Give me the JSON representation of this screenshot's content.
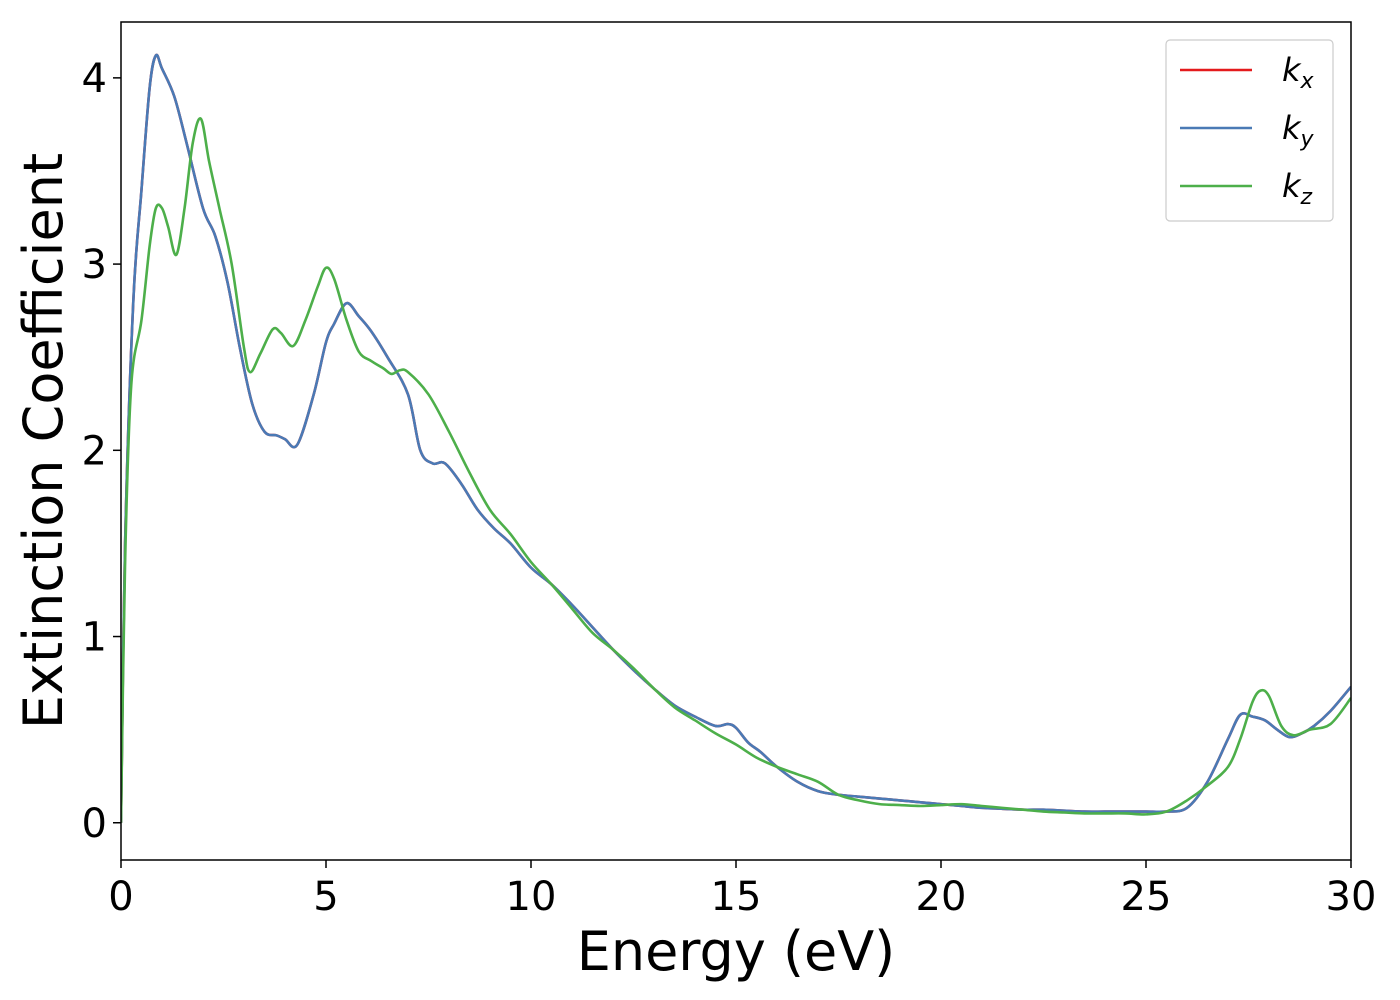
{
  "chart_data": {
    "type": "line",
    "xlabel": "Energy (eV)",
    "ylabel": "Extinction Coefficient",
    "xlim": [
      0,
      30
    ],
    "ylim": [
      -0.2,
      4.3
    ],
    "xticks": [
      0,
      5,
      10,
      15,
      20,
      25,
      30
    ],
    "yticks": [
      0,
      1,
      2,
      3,
      4
    ],
    "grid": false,
    "legend_position": "top-right",
    "series": [
      {
        "name": "k_x",
        "label_main": "k",
        "label_sub": "x",
        "color": "#e41a1c",
        "x": [
          0,
          0.1,
          0.3,
          0.5,
          0.7,
          0.85,
          1.0,
          1.3,
          1.6,
          2.0,
          2.3,
          2.6,
          2.9,
          3.2,
          3.5,
          3.8,
          4.0,
          4.3,
          4.7,
          5.0,
          5.2,
          5.5,
          5.8,
          6.1,
          6.5,
          7.0,
          7.3,
          7.6,
          7.9,
          8.3,
          8.7,
          9.1,
          9.5,
          10.0,
          10.5,
          11.0,
          11.5,
          12.0,
          12.5,
          13.0,
          13.5,
          14.0,
          14.5,
          14.8,
          15.0,
          15.3,
          15.6,
          16.0,
          16.5,
          17.0,
          17.5,
          18.0,
          18.5,
          19.0,
          19.5,
          20.0,
          20.5,
          21.0,
          21.5,
          22.0,
          22.5,
          23.0,
          23.5,
          24.0,
          24.5,
          25.0,
          25.5,
          26.0,
          26.5,
          27.0,
          27.3,
          27.6,
          27.9,
          28.2,
          28.5,
          28.8,
          29.1,
          29.5,
          30.0
        ],
        "y": [
          0.0,
          1.5,
          2.8,
          3.4,
          3.95,
          4.12,
          4.05,
          3.9,
          3.65,
          3.3,
          3.15,
          2.9,
          2.55,
          2.25,
          2.1,
          2.08,
          2.06,
          2.03,
          2.3,
          2.58,
          2.68,
          2.79,
          2.72,
          2.64,
          2.5,
          2.3,
          2.0,
          1.93,
          1.93,
          1.82,
          1.68,
          1.58,
          1.5,
          1.37,
          1.28,
          1.17,
          1.05,
          0.93,
          0.82,
          0.72,
          0.63,
          0.57,
          0.52,
          0.53,
          0.51,
          0.43,
          0.38,
          0.3,
          0.22,
          0.17,
          0.15,
          0.14,
          0.13,
          0.12,
          0.11,
          0.1,
          0.09,
          0.08,
          0.075,
          0.07,
          0.07,
          0.065,
          0.06,
          0.06,
          0.06,
          0.06,
          0.06,
          0.08,
          0.22,
          0.45,
          0.58,
          0.57,
          0.55,
          0.5,
          0.46,
          0.48,
          0.52,
          0.6,
          0.73
        ]
      },
      {
        "name": "k_y",
        "label_main": "k",
        "label_sub": "y",
        "color": "#4a7ab5",
        "x": [
          0,
          0.1,
          0.3,
          0.5,
          0.7,
          0.85,
          1.0,
          1.3,
          1.6,
          2.0,
          2.3,
          2.6,
          2.9,
          3.2,
          3.5,
          3.8,
          4.0,
          4.3,
          4.7,
          5.0,
          5.2,
          5.5,
          5.8,
          6.1,
          6.5,
          7.0,
          7.3,
          7.6,
          7.9,
          8.3,
          8.7,
          9.1,
          9.5,
          10.0,
          10.5,
          11.0,
          11.5,
          12.0,
          12.5,
          13.0,
          13.5,
          14.0,
          14.5,
          14.8,
          15.0,
          15.3,
          15.6,
          16.0,
          16.5,
          17.0,
          17.5,
          18.0,
          18.5,
          19.0,
          19.5,
          20.0,
          20.5,
          21.0,
          21.5,
          22.0,
          22.5,
          23.0,
          23.5,
          24.0,
          24.5,
          25.0,
          25.5,
          26.0,
          26.5,
          27.0,
          27.3,
          27.6,
          27.9,
          28.2,
          28.5,
          28.8,
          29.1,
          29.5,
          30.0
        ],
        "y": [
          0.0,
          1.5,
          2.8,
          3.4,
          3.95,
          4.12,
          4.05,
          3.9,
          3.65,
          3.3,
          3.15,
          2.9,
          2.55,
          2.25,
          2.1,
          2.08,
          2.06,
          2.03,
          2.3,
          2.58,
          2.68,
          2.79,
          2.72,
          2.64,
          2.5,
          2.3,
          2.0,
          1.93,
          1.93,
          1.82,
          1.68,
          1.58,
          1.5,
          1.37,
          1.28,
          1.17,
          1.05,
          0.93,
          0.82,
          0.72,
          0.63,
          0.57,
          0.52,
          0.53,
          0.51,
          0.43,
          0.38,
          0.3,
          0.22,
          0.17,
          0.15,
          0.14,
          0.13,
          0.12,
          0.11,
          0.1,
          0.09,
          0.08,
          0.075,
          0.07,
          0.07,
          0.065,
          0.06,
          0.06,
          0.06,
          0.06,
          0.06,
          0.08,
          0.22,
          0.45,
          0.58,
          0.57,
          0.55,
          0.5,
          0.46,
          0.48,
          0.52,
          0.6,
          0.73
        ]
      },
      {
        "name": "k_z",
        "label_main": "k",
        "label_sub": "z",
        "color": "#4daf4a",
        "x": [
          0,
          0.1,
          0.25,
          0.5,
          0.7,
          0.85,
          1.0,
          1.15,
          1.35,
          1.55,
          1.75,
          1.95,
          2.15,
          2.4,
          2.7,
          3.0,
          3.15,
          3.4,
          3.7,
          3.9,
          4.2,
          4.5,
          4.8,
          5.0,
          5.2,
          5.5,
          5.8,
          6.1,
          6.4,
          6.6,
          6.8,
          7.0,
          7.5,
          8.0,
          8.5,
          9.0,
          9.5,
          10.0,
          10.5,
          11.0,
          11.5,
          12.0,
          12.5,
          13.0,
          13.5,
          14.0,
          14.5,
          15.0,
          15.5,
          16.0,
          16.5,
          17.0,
          17.5,
          18.0,
          18.5,
          19.0,
          19.5,
          20.0,
          20.5,
          21.0,
          21.5,
          22.0,
          22.5,
          23.0,
          23.5,
          24.0,
          24.5,
          25.0,
          25.5,
          26.0,
          26.5,
          27.0,
          27.3,
          27.6,
          27.8,
          28.0,
          28.3,
          28.6,
          29.0,
          29.5,
          30.0
        ],
        "y": [
          0.0,
          1.4,
          2.35,
          2.7,
          3.1,
          3.3,
          3.3,
          3.2,
          3.05,
          3.3,
          3.65,
          3.78,
          3.55,
          3.3,
          3.0,
          2.55,
          2.42,
          2.52,
          2.65,
          2.63,
          2.56,
          2.7,
          2.88,
          2.98,
          2.92,
          2.7,
          2.53,
          2.48,
          2.44,
          2.41,
          2.43,
          2.42,
          2.3,
          2.1,
          1.88,
          1.68,
          1.55,
          1.4,
          1.28,
          1.15,
          1.02,
          0.93,
          0.83,
          0.72,
          0.62,
          0.55,
          0.48,
          0.42,
          0.35,
          0.3,
          0.26,
          0.22,
          0.15,
          0.12,
          0.1,
          0.095,
          0.09,
          0.095,
          0.1,
          0.09,
          0.08,
          0.07,
          0.06,
          0.055,
          0.05,
          0.05,
          0.05,
          0.045,
          0.06,
          0.12,
          0.2,
          0.3,
          0.45,
          0.65,
          0.71,
          0.68,
          0.52,
          0.47,
          0.5,
          0.53,
          0.67
        ]
      }
    ]
  }
}
